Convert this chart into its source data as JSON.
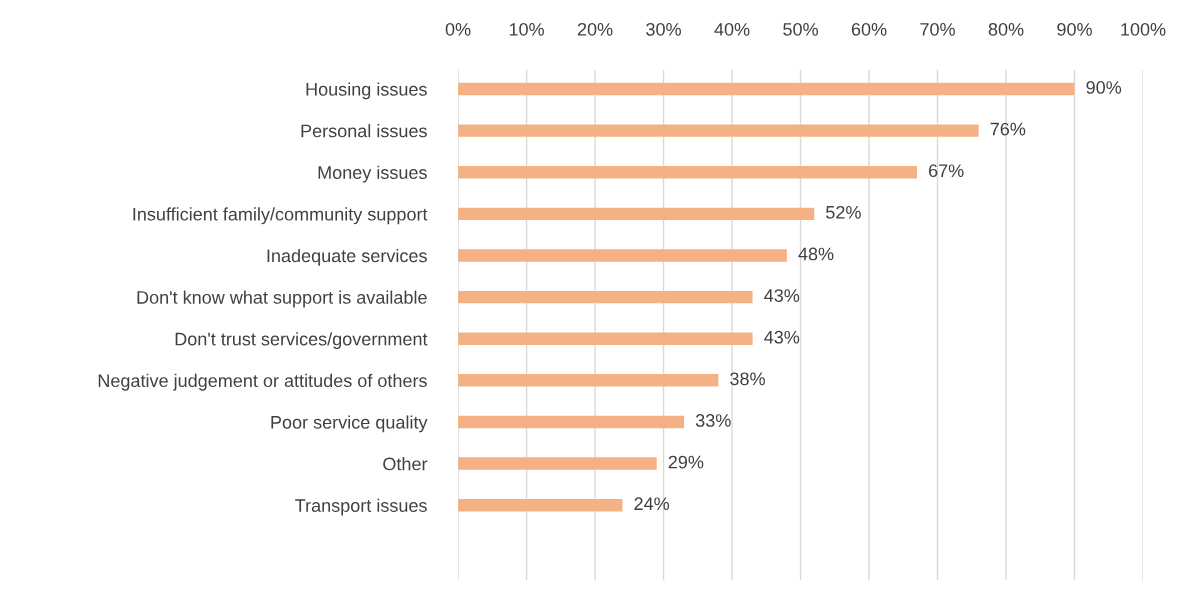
{
  "chart_data": {
    "type": "bar",
    "orientation": "horizontal",
    "categories": [
      "Housing issues",
      "Personal issues",
      "Money issues",
      "Insufficient family/community support",
      "Inadequate services",
      "Don't know what support is available",
      "Don't trust services/government",
      "Negative judgement or attitudes of others",
      "Poor service quality",
      "Other",
      "Transport issues"
    ],
    "values": [
      90,
      76,
      67,
      52,
      48,
      43,
      43,
      38,
      33,
      29,
      24
    ],
    "value_labels": [
      "90%",
      "76%",
      "67%",
      "52%",
      "48%",
      "43%",
      "43%",
      "38%",
      "33%",
      "29%",
      "24%"
    ],
    "color": "#f4b183",
    "xlim": [
      0,
      100
    ],
    "xticks": [
      {
        "value": 0,
        "label": "0%"
      },
      {
        "value": 10,
        "label": "10%"
      },
      {
        "value": 20,
        "label": "20%"
      },
      {
        "value": 30,
        "label": "30%"
      },
      {
        "value": 40,
        "label": "40%"
      },
      {
        "value": 50,
        "label": "50%"
      },
      {
        "value": 60,
        "label": "60%"
      },
      {
        "value": 70,
        "label": "70%"
      },
      {
        "value": 80,
        "label": "80%"
      },
      {
        "value": 90,
        "label": "90%"
      },
      {
        "value": 100,
        "label": "100%"
      }
    ],
    "grid": "x",
    "legend": false
  }
}
